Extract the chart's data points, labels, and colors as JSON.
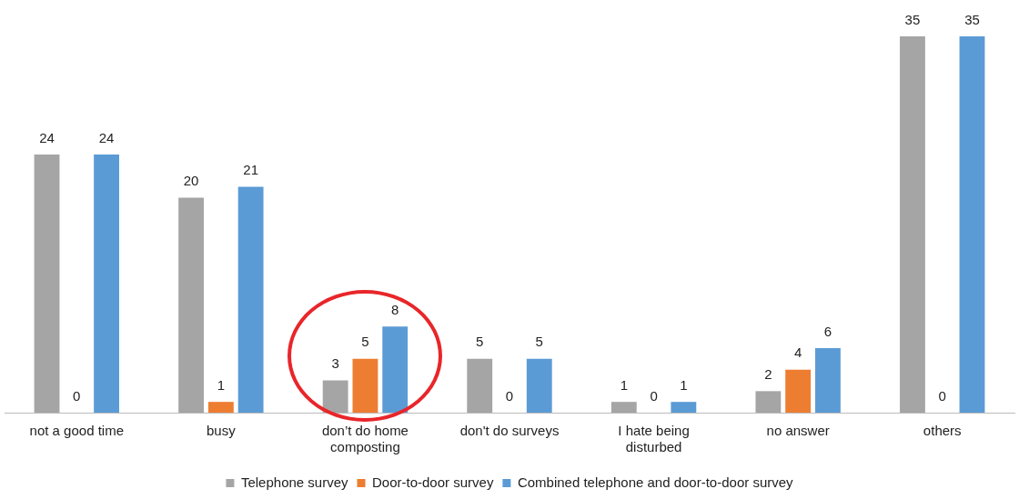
{
  "chart_data": {
    "type": "bar",
    "categories": [
      "not a good time",
      "busy",
      "don’t do home composting",
      "don't do surveys",
      "I hate being disturbed",
      "no answer",
      "others"
    ],
    "series": [
      {
        "name": "Telephone survey",
        "color": "#a5a5a5",
        "values": [
          24,
          20,
          3,
          5,
          1,
          2,
          35
        ]
      },
      {
        "name": "Door-to-door survey",
        "color": "#ed7d31",
        "values": [
          0,
          1,
          5,
          0,
          0,
          4,
          0
        ]
      },
      {
        "name": "Combined telephone and door-to-door survey",
        "color": "#5b9bd5",
        "values": [
          24,
          21,
          8,
          5,
          1,
          6,
          35
        ]
      }
    ],
    "data_labels": true,
    "grid": false,
    "legend": "bottom",
    "tick_labels": "x"
  }
}
